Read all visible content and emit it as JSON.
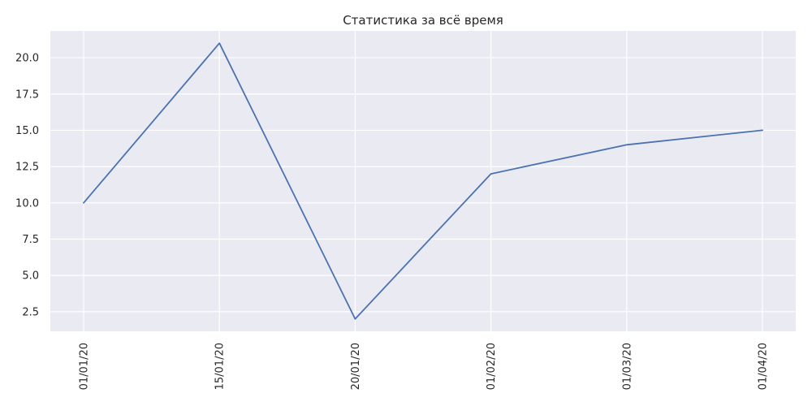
{
  "chart_data": {
    "type": "line",
    "title": "Статистика за всё время",
    "xlabel": "",
    "ylabel": "",
    "categories": [
      "01/01/20",
      "15/01/20",
      "20/01/20",
      "01/02/20",
      "01/03/20",
      "01/04/20"
    ],
    "series": [
      {
        "values": [
          10,
          21,
          2,
          12,
          14,
          15
        ],
        "color": "#4c72b0"
      }
    ],
    "yticks": [
      "2.5",
      "5.0",
      "7.5",
      "10.0",
      "12.5",
      "15.0",
      "17.5",
      "20.0"
    ],
    "ylim": [
      1.15,
      21.85
    ],
    "grid": true,
    "legend": "none",
    "colors": {
      "background": "#eaeaf2",
      "grid": "#ffffff",
      "text": "#262626"
    }
  }
}
